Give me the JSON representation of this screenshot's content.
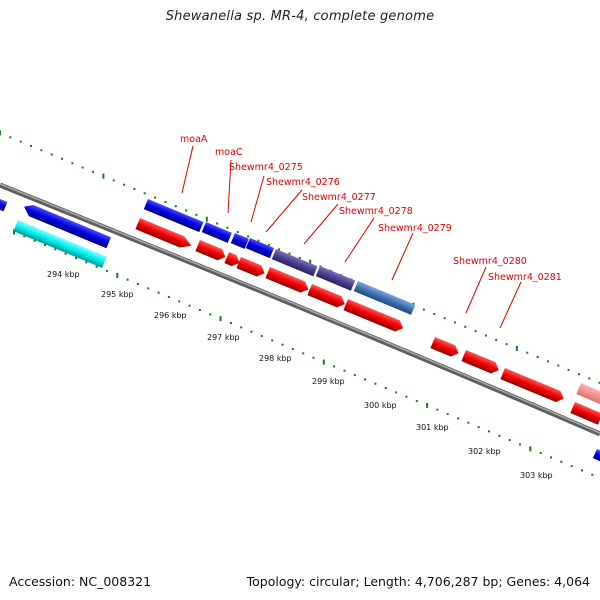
{
  "title": "Shewanella sp. MR-4, complete genome",
  "footer": {
    "accession": "Accession: NC_008321",
    "topology": "Topology: circular; Length: 4,706,287 bp; Genes: 4,064"
  },
  "colors": {
    "forward_cds": "#0000dd",
    "reverse_cds": "#ee0000",
    "rna": "#00eeee",
    "highlight_forward": "#4a3f8f",
    "highlight_blue": "#3f72b4",
    "backbone": "#808080",
    "dots": "#1a7a1a",
    "label": "#e00000"
  },
  "ticks": [
    "294 kbp",
    "295 kbp",
    "296 kbp",
    "297 kbp",
    "298 kbp",
    "299 kbp",
    "300 kbp",
    "301 kbp",
    "302 kbp",
    "303 kbp"
  ],
  "gene_labels": [
    "moaA",
    "moaC",
    "Shewmr4_0275",
    "Shewmr4_0276",
    "Shewmr4_0277",
    "Shewmr4_0278",
    "Shewmr4_0279",
    "Shewmr4_0280",
    "Shewmr4_0281"
  ]
}
